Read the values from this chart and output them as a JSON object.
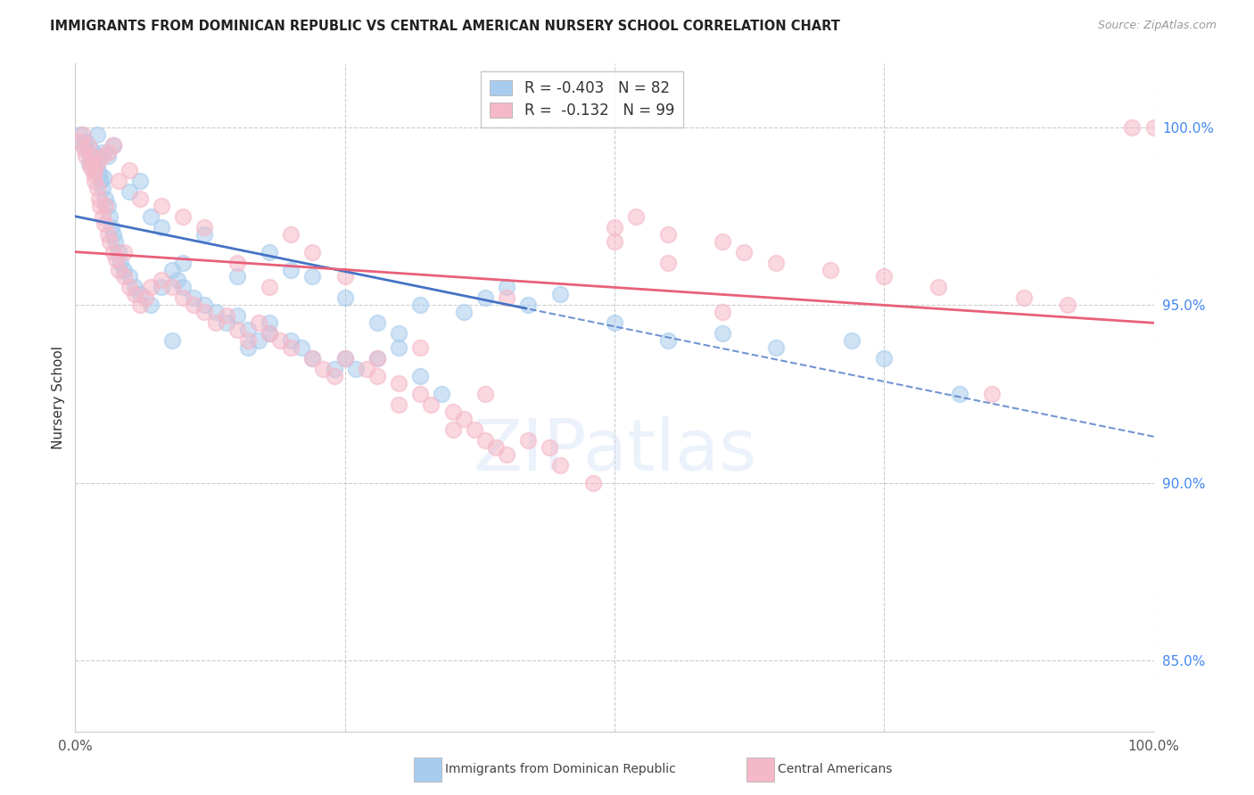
{
  "title": "IMMIGRANTS FROM DOMINICAN REPUBLIC VS CENTRAL AMERICAN NURSERY SCHOOL CORRELATION CHART",
  "source": "Source: ZipAtlas.com",
  "ylabel": "Nursery School",
  "right_ytick_labels": [
    "85.0%",
    "90.0%",
    "95.0%",
    "100.0%"
  ],
  "right_yticks": [
    85.0,
    90.0,
    95.0,
    100.0
  ],
  "xmin": 0.0,
  "xmax": 100.0,
  "ymin": 83.0,
  "ymax": 101.8,
  "legend_blue_r": "-0.403",
  "legend_blue_n": "82",
  "legend_pink_r": "-0.132",
  "legend_pink_n": "99",
  "blue_color": "#A8CCEE",
  "pink_color": "#F5B8C8",
  "trend_blue_color": "#4472C4",
  "trend_pink_color": "#E8607A",
  "blue_solid_end": 42.0,
  "blue_scatter_x": [
    0.5,
    0.8,
    1.0,
    1.2,
    1.3,
    1.5,
    1.6,
    1.8,
    2.0,
    2.0,
    2.2,
    2.4,
    2.5,
    2.6,
    2.8,
    3.0,
    3.2,
    3.4,
    3.5,
    3.7,
    4.0,
    4.2,
    4.5,
    5.0,
    5.5,
    6.0,
    7.0,
    8.0,
    9.0,
    9.5,
    10.0,
    11.0,
    12.0,
    13.0,
    14.0,
    15.0,
    16.0,
    17.0,
    18.0,
    20.0,
    21.0,
    22.0,
    24.0,
    25.0,
    26.0,
    28.0,
    30.0,
    32.0,
    34.0,
    36.0,
    38.0,
    40.0,
    42.0,
    45.0,
    50.0,
    55.0,
    60.0,
    65.0,
    72.0,
    75.0,
    82.0,
    9.0,
    10.0,
    12.0,
    15.0,
    18.0,
    20.0,
    22.0,
    25.0,
    28.0,
    30.0,
    32.0,
    16.0,
    18.0,
    7.0,
    8.0,
    5.0,
    6.0,
    3.0,
    3.5,
    2.0,
    2.5
  ],
  "blue_scatter_y": [
    99.8,
    99.5,
    99.6,
    99.3,
    99.0,
    99.4,
    99.1,
    98.8,
    98.9,
    99.2,
    98.7,
    98.5,
    98.3,
    98.6,
    98.0,
    97.8,
    97.5,
    97.2,
    97.0,
    96.8,
    96.5,
    96.2,
    96.0,
    95.8,
    95.5,
    95.3,
    95.0,
    95.5,
    96.0,
    95.7,
    95.5,
    95.2,
    95.0,
    94.8,
    94.5,
    94.7,
    94.3,
    94.0,
    94.5,
    94.0,
    93.8,
    93.5,
    93.2,
    93.5,
    93.2,
    94.5,
    93.8,
    93.0,
    92.5,
    94.8,
    95.2,
    95.5,
    95.0,
    95.3,
    94.5,
    94.0,
    94.2,
    93.8,
    94.0,
    93.5,
    92.5,
    94.0,
    96.2,
    97.0,
    95.8,
    96.5,
    96.0,
    95.8,
    95.2,
    93.5,
    94.2,
    95.0,
    93.8,
    94.2,
    97.5,
    97.2,
    98.2,
    98.5,
    99.2,
    99.5,
    99.8,
    99.3
  ],
  "pink_scatter_x": [
    0.5,
    0.7,
    0.8,
    1.0,
    1.2,
    1.4,
    1.5,
    1.7,
    1.8,
    2.0,
    2.2,
    2.3,
    2.5,
    2.7,
    3.0,
    3.2,
    3.5,
    3.8,
    4.0,
    4.5,
    5.0,
    5.5,
    6.0,
    6.5,
    7.0,
    8.0,
    9.0,
    10.0,
    11.0,
    12.0,
    13.0,
    14.0,
    15.0,
    16.0,
    17.0,
    18.0,
    19.0,
    20.0,
    22.0,
    23.0,
    24.0,
    25.0,
    27.0,
    28.0,
    30.0,
    32.0,
    33.0,
    35.0,
    36.0,
    37.0,
    38.0,
    39.0,
    40.0,
    42.0,
    44.0,
    45.0,
    48.0,
    50.0,
    52.0,
    55.0,
    60.0,
    62.0,
    65.0,
    70.0,
    75.0,
    80.0,
    85.0,
    88.0,
    92.0,
    98.0,
    100.0,
    15.0,
    18.0,
    20.0,
    22.0,
    25.0,
    28.0,
    30.0,
    32.0,
    35.0,
    38.0,
    40.0,
    50.0,
    55.0,
    60.0,
    10.0,
    12.0,
    8.0,
    6.0,
    4.0,
    2.0,
    3.0,
    5.0,
    2.5,
    3.5,
    1.5,
    1.8,
    2.8,
    4.5
  ],
  "pink_scatter_y": [
    99.6,
    99.8,
    99.4,
    99.2,
    99.5,
    98.9,
    99.0,
    98.7,
    98.5,
    98.3,
    98.0,
    97.8,
    97.5,
    97.3,
    97.0,
    96.8,
    96.5,
    96.3,
    96.0,
    95.8,
    95.5,
    95.3,
    95.0,
    95.2,
    95.5,
    95.7,
    95.5,
    95.2,
    95.0,
    94.8,
    94.5,
    94.7,
    94.3,
    94.0,
    94.5,
    94.2,
    94.0,
    93.8,
    93.5,
    93.2,
    93.0,
    93.5,
    93.2,
    93.0,
    92.8,
    92.5,
    92.2,
    92.0,
    91.8,
    91.5,
    91.2,
    91.0,
    90.8,
    91.2,
    91.0,
    90.5,
    90.0,
    97.2,
    97.5,
    97.0,
    96.8,
    96.5,
    96.2,
    96.0,
    95.8,
    95.5,
    92.5,
    95.2,
    95.0,
    100.0,
    100.0,
    96.2,
    95.5,
    97.0,
    96.5,
    95.8,
    93.5,
    92.2,
    93.8,
    91.5,
    92.5,
    95.2,
    96.8,
    96.2,
    94.8,
    97.5,
    97.2,
    97.8,
    98.0,
    98.5,
    99.0,
    99.3,
    98.8,
    99.2,
    99.5,
    99.2,
    98.8,
    97.8,
    96.5
  ]
}
